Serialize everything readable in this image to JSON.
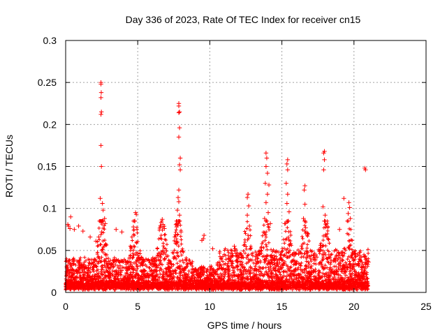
{
  "chart_data": {
    "type": "scatter",
    "title": "Day 336 of 2023, Rate Of TEC Index for receiver cn15",
    "xlabel": "GPS time / hours",
    "ylabel": "ROTI / TECUs",
    "xlim": [
      0,
      25
    ],
    "ylim": [
      0,
      0.3
    ],
    "x_ticks": [
      0,
      5,
      10,
      15,
      20,
      25
    ],
    "y_ticks": [
      0,
      0.05,
      0.1,
      0.15,
      0.2,
      0.25,
      0.3
    ],
    "x_tick_labels": [
      "0",
      "5",
      "10",
      "15",
      "20",
      "25"
    ],
    "y_tick_labels": [
      "0",
      "0.05",
      "0.1",
      "0.15",
      "0.2",
      "0.25",
      "0.3"
    ],
    "grid": true,
    "marker": "+",
    "color": "#ff0000",
    "data_range_hours": [
      0,
      21
    ],
    "series": [
      {
        "points": [
          [
            2.45,
            0.25
          ],
          [
            2.45,
            0.248
          ],
          [
            2.47,
            0.238
          ],
          [
            2.45,
            0.232
          ],
          [
            2.48,
            0.215
          ],
          [
            2.45,
            0.212
          ],
          [
            2.45,
            0.175
          ],
          [
            2.48,
            0.15
          ],
          [
            2.4,
            0.112
          ],
          [
            2.55,
            0.106
          ],
          [
            2.6,
            0.098
          ],
          [
            2.7,
            0.088
          ],
          [
            2.75,
            0.082
          ],
          [
            2.5,
            0.072
          ],
          [
            2.3,
            0.066
          ],
          [
            2.1,
            0.061
          ],
          [
            7.85,
            0.225
          ],
          [
            7.85,
            0.222
          ],
          [
            7.9,
            0.215
          ],
          [
            7.85,
            0.214
          ],
          [
            7.9,
            0.196
          ],
          [
            7.85,
            0.185
          ],
          [
            7.95,
            0.16
          ],
          [
            7.9,
            0.152
          ],
          [
            7.95,
            0.146
          ],
          [
            7.85,
            0.122
          ],
          [
            7.8,
            0.113
          ],
          [
            7.85,
            0.108
          ],
          [
            7.75,
            0.098
          ],
          [
            7.9,
            0.092
          ],
          [
            7.7,
            0.078
          ],
          [
            8.0,
            0.072
          ],
          [
            13.9,
            0.166
          ],
          [
            13.95,
            0.16
          ],
          [
            13.9,
            0.15
          ],
          [
            14.0,
            0.142
          ],
          [
            13.85,
            0.13
          ],
          [
            14.1,
            0.128
          ],
          [
            14.0,
            0.117
          ],
          [
            13.9,
            0.107
          ],
          [
            14.05,
            0.095
          ],
          [
            13.8,
            0.088
          ],
          [
            14.2,
            0.082
          ],
          [
            15.4,
            0.158
          ],
          [
            15.35,
            0.153
          ],
          [
            15.4,
            0.146
          ],
          [
            15.3,
            0.13
          ],
          [
            15.4,
            0.117
          ],
          [
            15.35,
            0.106
          ],
          [
            15.5,
            0.096
          ],
          [
            15.45,
            0.085
          ],
          [
            15.2,
            0.082
          ],
          [
            16.6,
            0.127
          ],
          [
            16.55,
            0.122
          ],
          [
            16.6,
            0.105
          ],
          [
            16.5,
            0.088
          ],
          [
            16.65,
            0.077
          ],
          [
            17.95,
            0.168
          ],
          [
            17.9,
            0.166
          ],
          [
            17.95,
            0.158
          ],
          [
            17.9,
            0.146
          ],
          [
            17.85,
            0.102
          ],
          [
            18.0,
            0.092
          ],
          [
            17.95,
            0.085
          ],
          [
            18.05,
            0.078
          ],
          [
            20.75,
            0.148
          ],
          [
            20.8,
            0.146
          ],
          [
            19.3,
            0.112
          ],
          [
            19.65,
            0.107
          ],
          [
            19.7,
            0.101
          ],
          [
            19.6,
            0.094
          ],
          [
            19.75,
            0.088
          ],
          [
            12.65,
            0.117
          ],
          [
            12.6,
            0.113
          ],
          [
            12.7,
            0.103
          ],
          [
            12.6,
            0.092
          ],
          [
            12.75,
            0.079
          ],
          [
            11.7,
            0.055
          ],
          [
            11.75,
            0.052
          ],
          [
            0.35,
            0.09
          ],
          [
            0.15,
            0.081
          ],
          [
            0.2,
            0.079
          ],
          [
            0.3,
            0.076
          ],
          [
            0.6,
            0.075
          ],
          [
            0.9,
            0.079
          ],
          [
            1.2,
            0.073
          ],
          [
            1.7,
            0.066
          ],
          [
            4.85,
            0.095
          ],
          [
            4.9,
            0.093
          ],
          [
            4.8,
            0.085
          ],
          [
            4.7,
            0.078
          ],
          [
            3.5,
            0.075
          ],
          [
            3.9,
            0.072
          ],
          [
            6.7,
            0.087
          ],
          [
            6.75,
            0.081
          ],
          [
            6.6,
            0.078
          ],
          [
            6.85,
            0.076
          ],
          [
            9.6,
            0.068
          ],
          [
            9.55,
            0.064
          ],
          [
            9.45,
            0.062
          ],
          [
            10.2,
            0.052
          ],
          [
            19.0,
            0.075
          ],
          [
            21.0,
            0.036
          ],
          [
            20.5,
            0.042
          ],
          [
            20.9,
            0.038
          ]
        ]
      }
    ]
  }
}
